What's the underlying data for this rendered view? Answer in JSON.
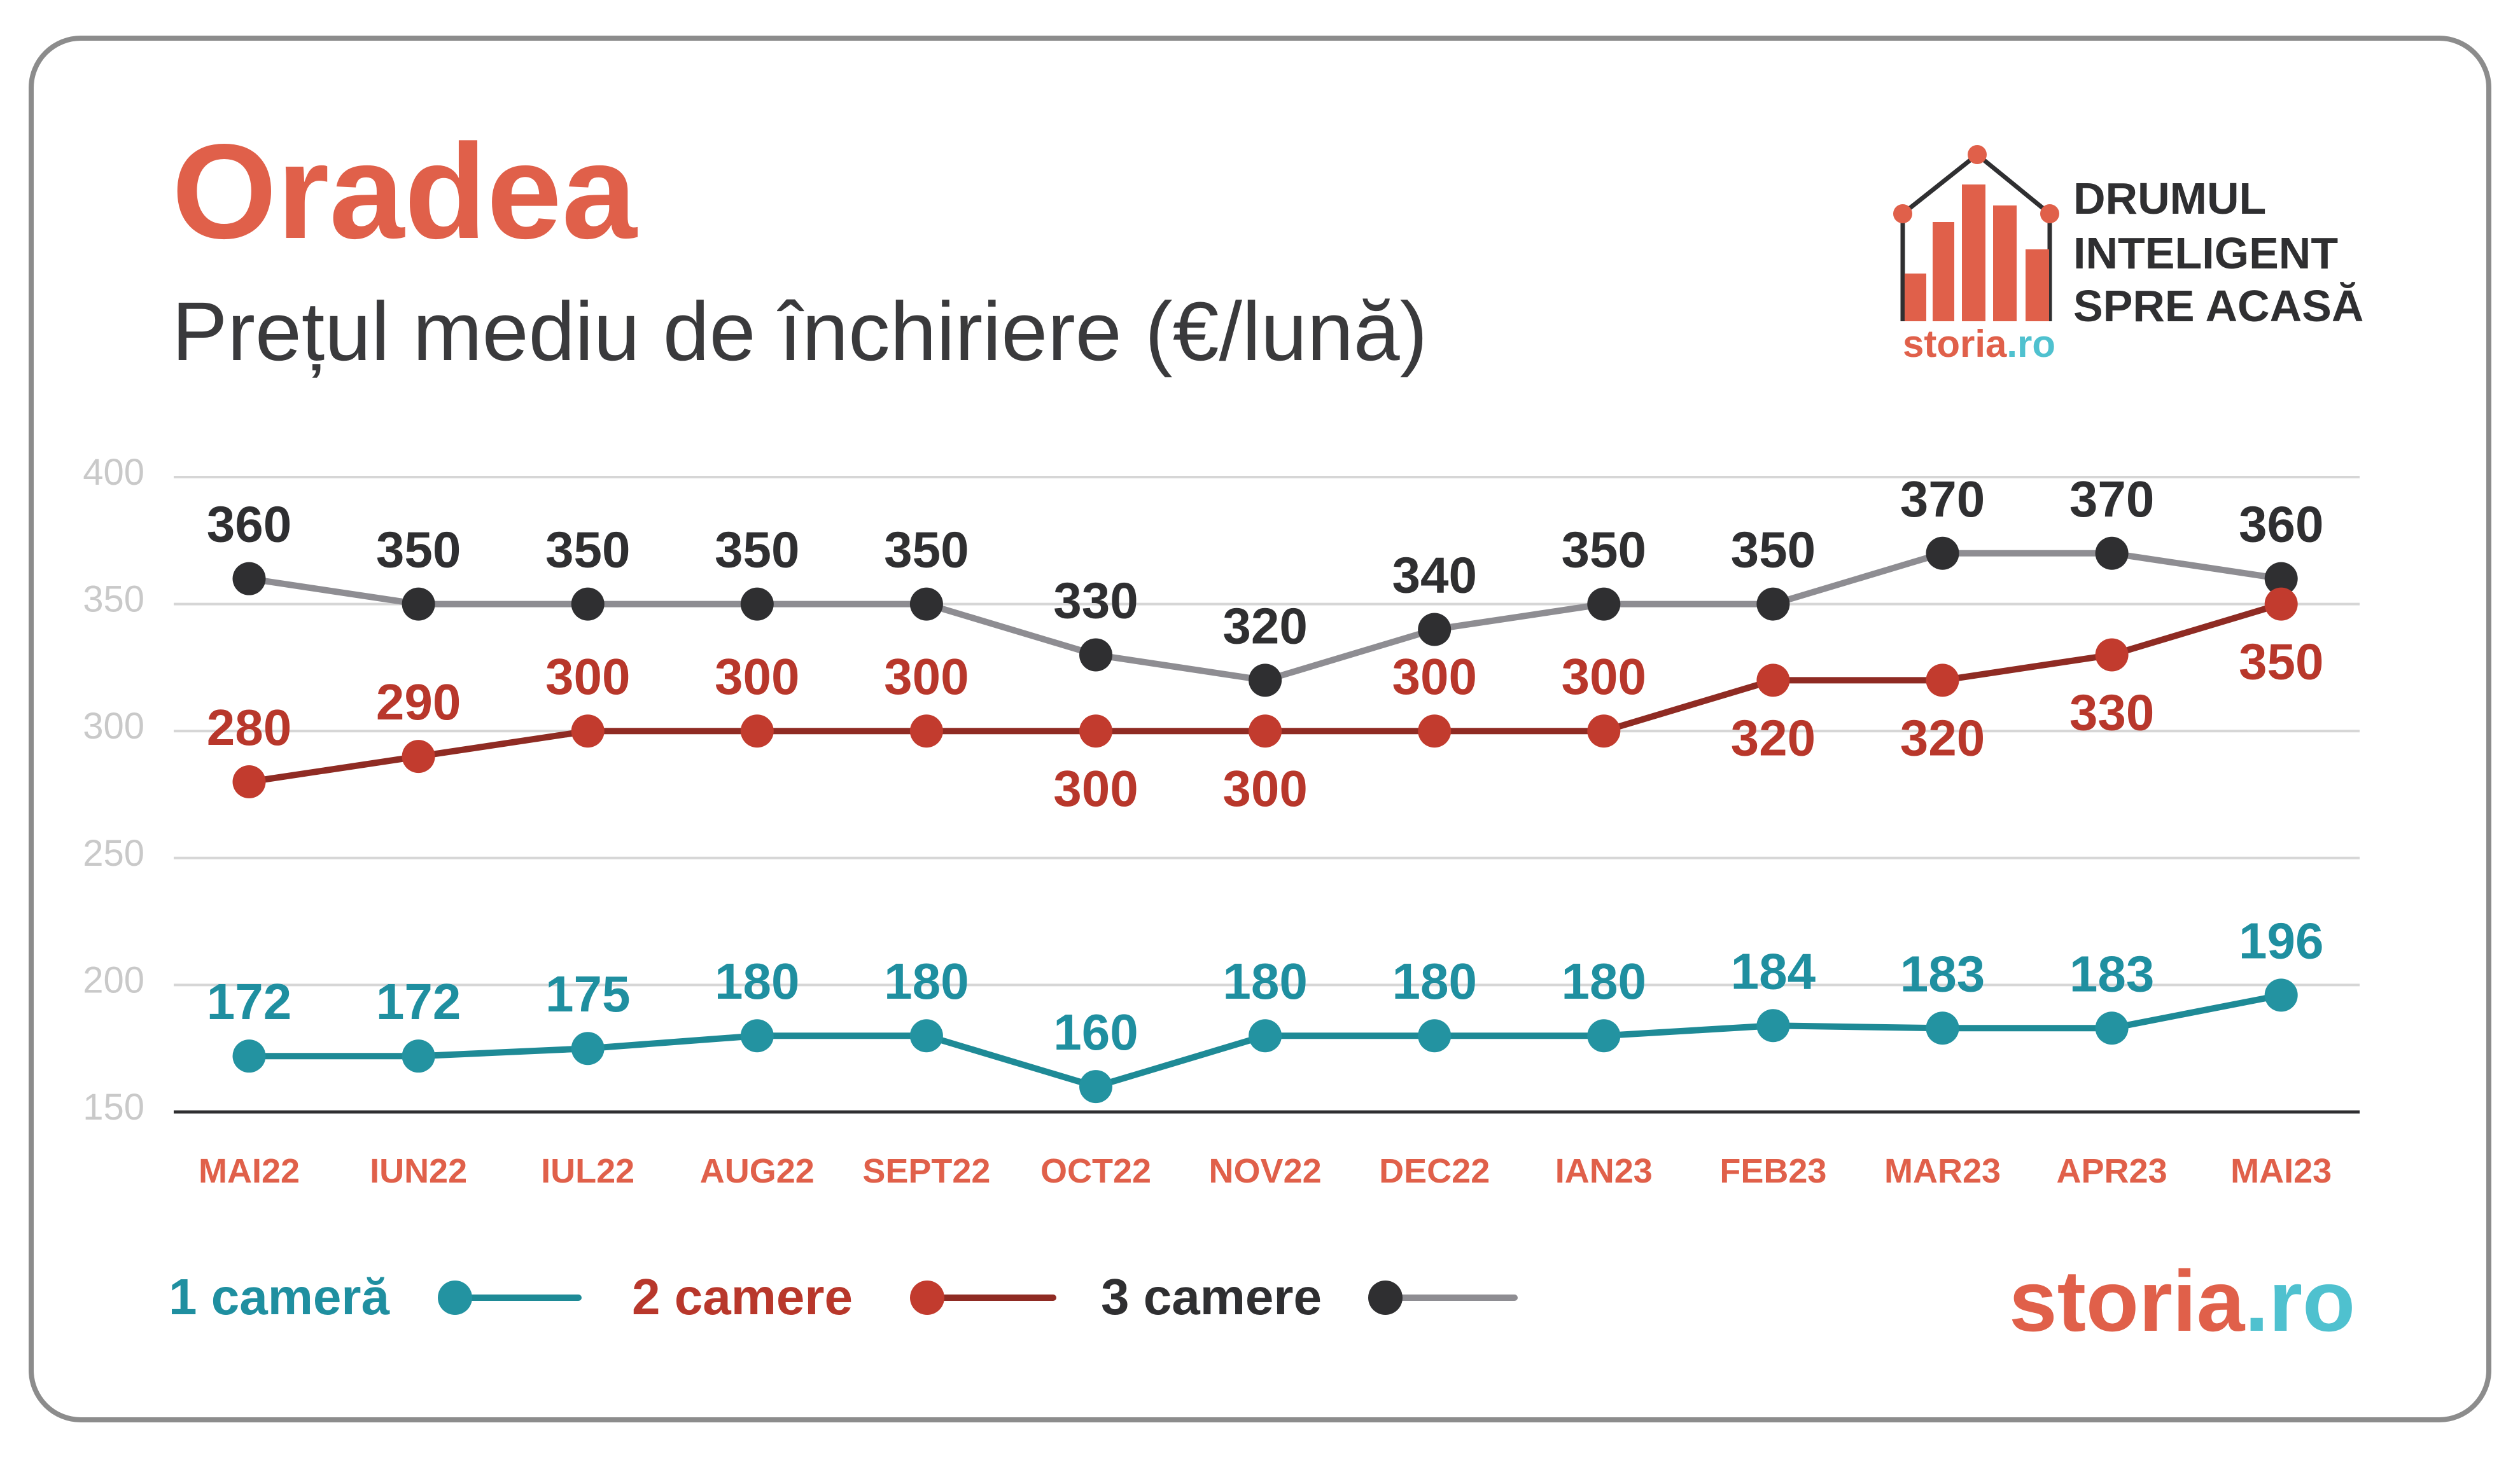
{
  "colors": {
    "accent": "#E0604A",
    "brand_cyan": "#4FC1CF",
    "text_dark": "#2F2F31",
    "subtitle_text": "#3A3A3C",
    "grid": "#D6D6D6",
    "axis_line": "#2F2F31",
    "tick_label": "#C9C9C9",
    "card_border": "#8C8C8C",
    "background": "#FFFFFF"
  },
  "logo": {
    "tagline": [
      "DRUMUL",
      "INTELIGENT",
      "SPRE ACASĂ"
    ],
    "brand_main": "storia",
    "brand_tld": ".ro",
    "icon": "house-bar-chart-icon"
  },
  "footer_logo": {
    "brand_main": "storia",
    "brand_tld": ".ro"
  },
  "chart_data": {
    "type": "line",
    "title": "Oradea",
    "subtitle": "Prețul mediu de închiriere (€/lună)",
    "categories": [
      "MAI22",
      "IUN22",
      "IUL22",
      "AUG22",
      "SEPT22",
      "OCT22",
      "NOV22",
      "DEC22",
      "IAN23",
      "FEB23",
      "MAR23",
      "APR23",
      "MAI23"
    ],
    "ylim": [
      150,
      400
    ],
    "yticks": [
      400,
      350,
      300,
      250,
      200,
      150
    ],
    "grid": true,
    "legend": "bottom-left",
    "series": [
      {
        "name": "1 cameră",
        "values": [
          172,
          172,
          175,
          180,
          180,
          160,
          180,
          180,
          180,
          184,
          183,
          183,
          196
        ],
        "line_color": "#1E8A96",
        "marker_color": "#2393A1",
        "label_color": "#1F8FA0"
      },
      {
        "name": "2 camere",
        "values": [
          280,
          290,
          300,
          300,
          300,
          300,
          300,
          300,
          300,
          320,
          320,
          330,
          350
        ],
        "line_color": "#8F2B23",
        "marker_color": "#C23B2E",
        "label_color": "#B8372B"
      },
      {
        "name": "3 camere",
        "values": [
          360,
          350,
          350,
          350,
          350,
          330,
          320,
          340,
          350,
          350,
          370,
          370,
          360
        ],
        "line_color": "#8E8D92",
        "marker_color": "#2F2F31",
        "label_color": "#2F2F31"
      }
    ]
  }
}
